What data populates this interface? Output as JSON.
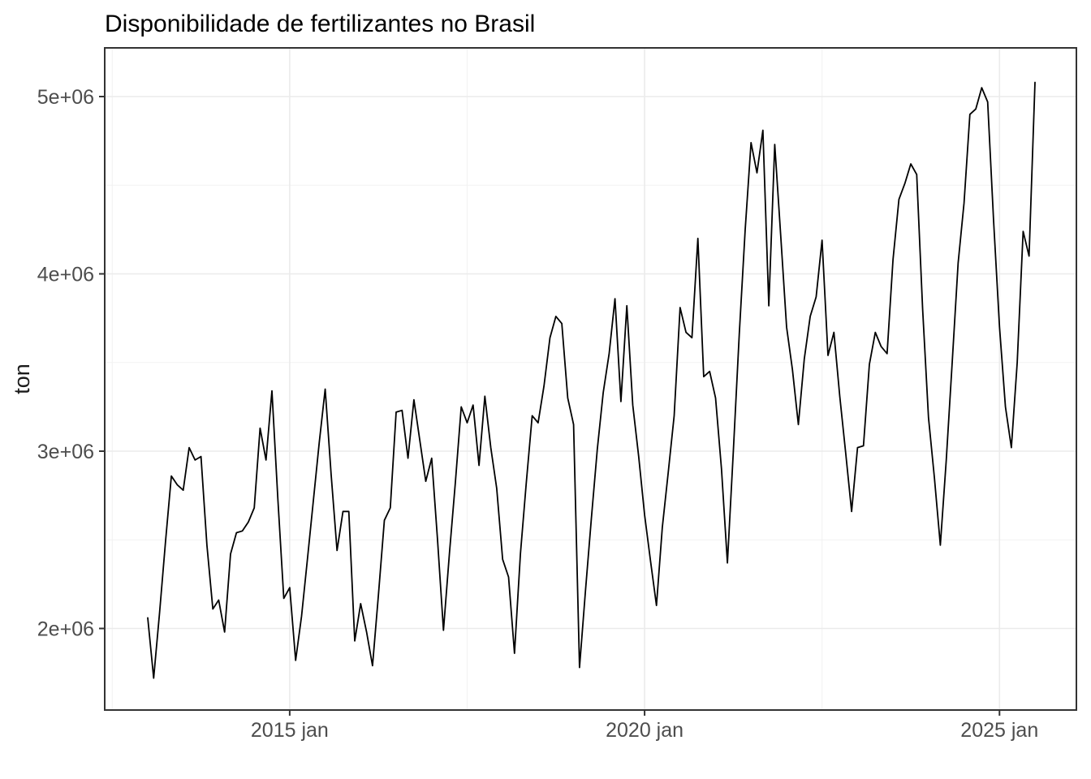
{
  "chart_data": {
    "type": "line",
    "title": "Disponibilidade de fertilizantes no Brasil",
    "xlabel": "",
    "ylabel": "ton",
    "unit": "ton",
    "frequency": "monthly",
    "x_start": "2013-01",
    "x_end": "2025-07",
    "x_tick_labels": [
      "2015 jan",
      "2020 jan",
      "2025 jan"
    ],
    "x_tick_years": [
      2015,
      2020,
      2025
    ],
    "y_ticks": [
      2000000,
      3000000,
      4000000,
      5000000
    ],
    "y_tick_labels": [
      "2e+06",
      "3e+06",
      "4e+06",
      "5e+06"
    ],
    "ylim": [
      1530000,
      5270000
    ],
    "grid": true,
    "legend": "none",
    "line_color": "#000000",
    "series_name": "Disponibilidade de fertilizantes",
    "values": [
      2060000,
      1720000,
      2090000,
      2490000,
      2860000,
      2810000,
      2780000,
      3020000,
      2950000,
      2970000,
      2470000,
      2110000,
      2160000,
      1980000,
      2420000,
      2540000,
      2550000,
      2600000,
      2680000,
      3130000,
      2950000,
      3340000,
      2730000,
      2170000,
      2230000,
      1820000,
      2070000,
      2390000,
      2720000,
      3050000,
      3350000,
      2870000,
      2440000,
      2660000,
      2660000,
      1930000,
      2140000,
      1980000,
      1790000,
      2190000,
      2610000,
      2680000,
      3220000,
      3230000,
      2960000,
      3290000,
      3060000,
      2830000,
      2960000,
      2500000,
      1990000,
      2420000,
      2820000,
      3250000,
      3160000,
      3260000,
      2920000,
      3310000,
      3020000,
      2790000,
      2390000,
      2290000,
      1860000,
      2420000,
      2820000,
      3200000,
      3160000,
      3370000,
      3640000,
      3760000,
      3720000,
      3300000,
      3150000,
      1780000,
      2210000,
      2620000,
      3010000,
      3330000,
      3550000,
      3860000,
      3280000,
      3820000,
      3260000,
      2970000,
      2640000,
      2380000,
      2130000,
      2570000,
      2880000,
      3200000,
      3810000,
      3670000,
      3640000,
      4200000,
      3420000,
      3450000,
      3300000,
      2900000,
      2370000,
      3000000,
      3660000,
      4250000,
      4740000,
      4570000,
      4810000,
      3820000,
      4730000,
      4220000,
      3700000,
      3460000,
      3150000,
      3520000,
      3760000,
      3870000,
      4190000,
      3540000,
      3670000,
      3310000,
      2990000,
      2660000,
      3020000,
      3030000,
      3490000,
      3670000,
      3590000,
      3550000,
      4080000,
      4420000,
      4510000,
      4620000,
      4560000,
      3800000,
      3190000,
      2850000,
      2470000,
      2950000,
      3500000,
      4060000,
      4400000,
      4900000,
      4930000,
      5050000,
      4970000,
      4300000,
      3700000,
      3250000,
      3020000,
      3500000,
      4240000,
      4100000,
      5080000
    ]
  },
  "theme": {
    "panel_background": "#ffffff",
    "panel_border_color": "#333333",
    "grid_major_color": "#ebebeb",
    "grid_minor_color": "#f2f2f2",
    "tick_mark_color": "#333333",
    "tick_label_color": "#4d4d4d",
    "title_color": "#000000"
  }
}
